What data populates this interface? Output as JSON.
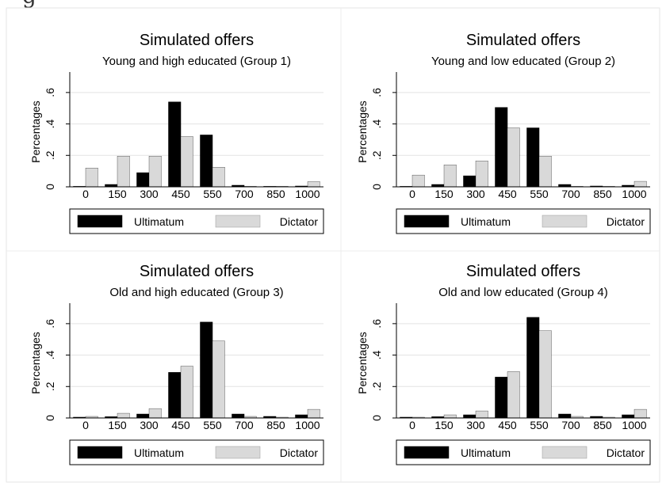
{
  "figure": {
    "caption_fragment": "g"
  },
  "chart_data": [
    {
      "type": "bar",
      "title": "Simulated offers",
      "subtitle": "Young and high educated (Group 1)",
      "ylabel": "Percentages",
      "xlabel": "",
      "categories": [
        "0",
        "150",
        "300",
        "450",
        "550",
        "700",
        "850",
        "1000"
      ],
      "y_ticks": [
        "0",
        ".2",
        ".4",
        ".6"
      ],
      "ylim": [
        0,
        0.7
      ],
      "grid": "horizontal",
      "legend": "bottom",
      "series": [
        {
          "name": "Ultimatum",
          "color": "#000000",
          "values": [
            0.002,
            0.015,
            0.09,
            0.54,
            0.33,
            0.01,
            0.003,
            0.005
          ]
        },
        {
          "name": "Dictator",
          "color": "#d9d9d9",
          "values": [
            0.12,
            0.195,
            0.195,
            0.32,
            0.125,
            0.002,
            0.003,
            0.033
          ]
        }
      ]
    },
    {
      "type": "bar",
      "title": "Simulated offers",
      "subtitle": "Young and low educated (Group 2)",
      "ylabel": "Percentages",
      "xlabel": "",
      "categories": [
        "0",
        "150",
        "300",
        "450",
        "550",
        "700",
        "850",
        "1000"
      ],
      "y_ticks": [
        "0",
        ".2",
        ".4",
        ".6"
      ],
      "ylim": [
        0,
        0.7
      ],
      "grid": "horizontal",
      "legend": "bottom",
      "series": [
        {
          "name": "Ultimatum",
          "color": "#000000",
          "values": [
            0.003,
            0.015,
            0.07,
            0.505,
            0.375,
            0.015,
            0.005,
            0.01
          ]
        },
        {
          "name": "Dictator",
          "color": "#d9d9d9",
          "values": [
            0.075,
            0.14,
            0.165,
            0.375,
            0.195,
            0.003,
            0.002,
            0.035
          ]
        }
      ]
    },
    {
      "type": "bar",
      "title": "Simulated offers",
      "subtitle": "Old and high educated (Group 3)",
      "ylabel": "Percentages",
      "xlabel": "",
      "categories": [
        "0",
        "150",
        "300",
        "450",
        "550",
        "700",
        "850",
        "1000"
      ],
      "y_ticks": [
        "0",
        ".2",
        ".4",
        ".6"
      ],
      "ylim": [
        0,
        0.7
      ],
      "grid": "horizontal",
      "legend": "bottom",
      "series": [
        {
          "name": "Ultimatum",
          "color": "#000000",
          "values": [
            0.005,
            0.008,
            0.025,
            0.29,
            0.61,
            0.025,
            0.01,
            0.02
          ]
        },
        {
          "name": "Dictator",
          "color": "#d9d9d9",
          "values": [
            0.01,
            0.03,
            0.06,
            0.33,
            0.49,
            0.01,
            0.005,
            0.055
          ]
        }
      ]
    },
    {
      "type": "bar",
      "title": "Simulated offers",
      "subtitle": "Old and low educated (Group 4)",
      "ylabel": "Percentages",
      "xlabel": "",
      "categories": [
        "0",
        "150",
        "300",
        "450",
        "550",
        "700",
        "850",
        "1000"
      ],
      "y_ticks": [
        "0",
        ".2",
        ".4",
        ".6"
      ],
      "ylim": [
        0,
        0.7
      ],
      "grid": "horizontal",
      "legend": "bottom",
      "series": [
        {
          "name": "Ultimatum",
          "color": "#000000",
          "values": [
            0.005,
            0.008,
            0.02,
            0.26,
            0.64,
            0.025,
            0.01,
            0.02
          ]
        },
        {
          "name": "Dictator",
          "color": "#d9d9d9",
          "values": [
            0.005,
            0.02,
            0.045,
            0.295,
            0.555,
            0.01,
            0.005,
            0.055
          ]
        }
      ]
    }
  ]
}
